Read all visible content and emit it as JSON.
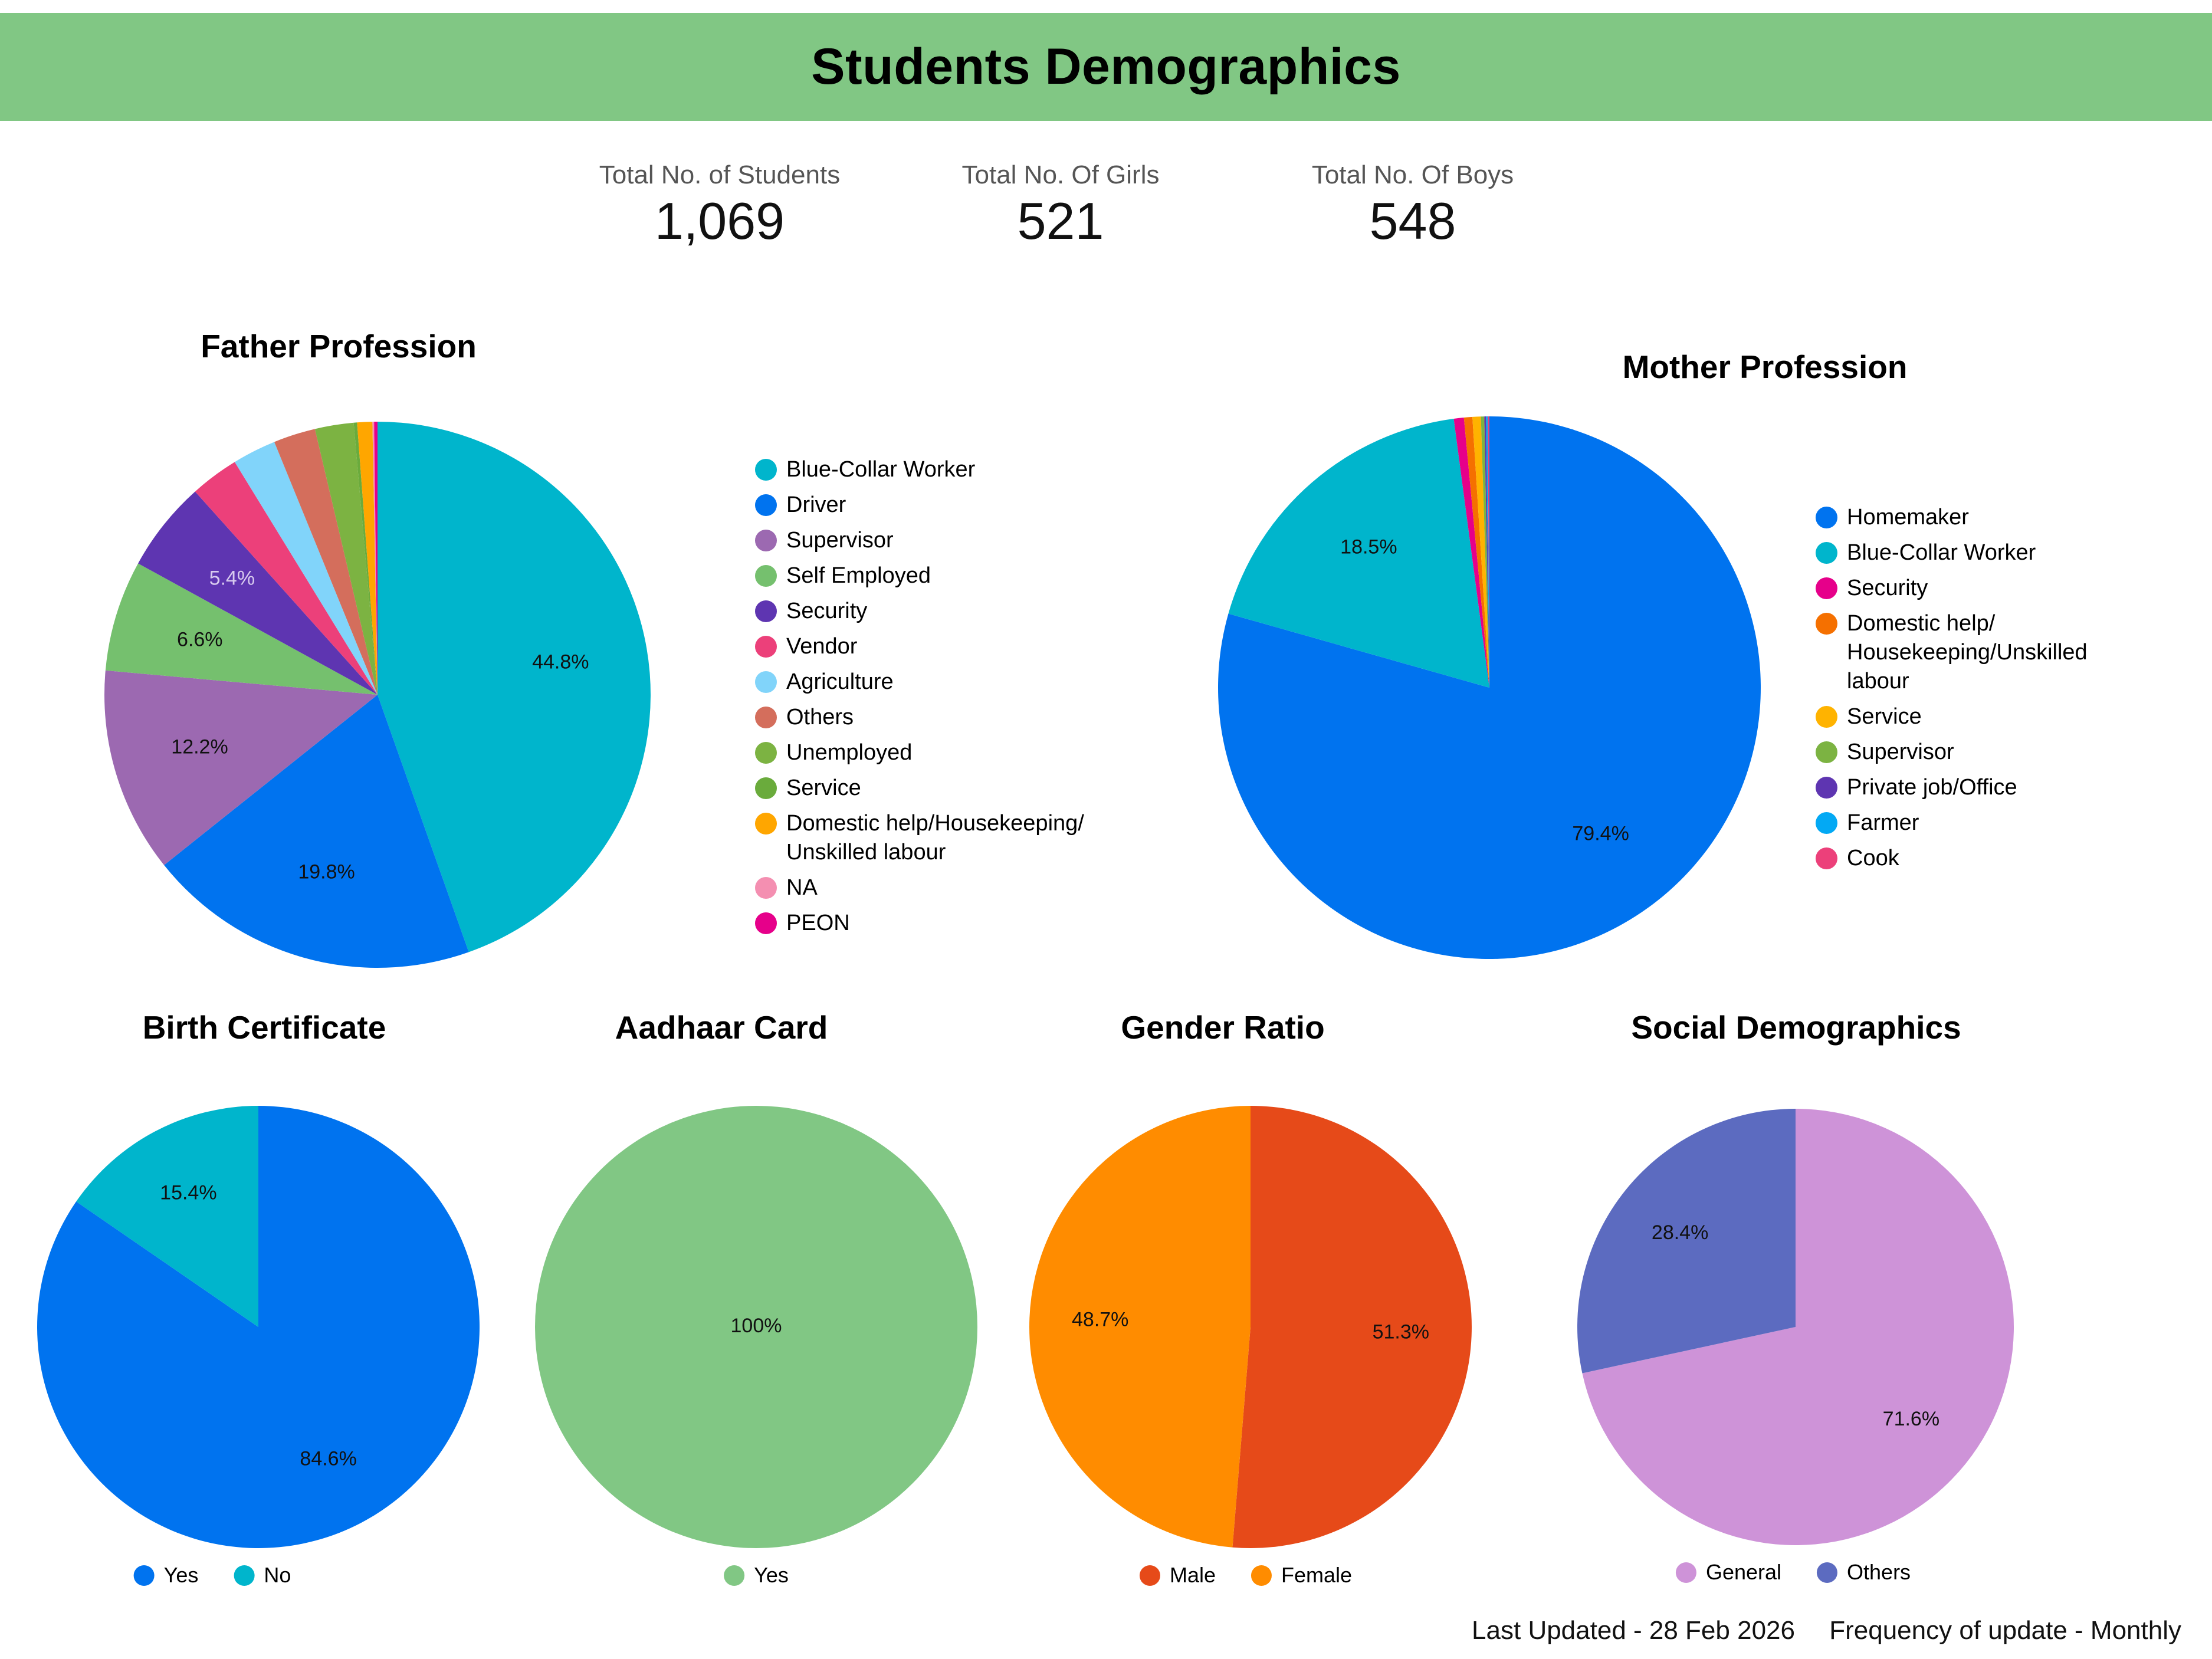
{
  "header": {
    "title": "Students Demographics"
  },
  "kpis": [
    {
      "label": "Total No. of Students",
      "value": "1,069"
    },
    {
      "label": "Total No. Of Girls",
      "value": "521"
    },
    {
      "label": "Total No. Of Boys",
      "value": "548"
    }
  ],
  "footer": {
    "last_updated": "Last Updated - 28 Feb 2026",
    "frequency": "Frequency of update - Monthly"
  },
  "chart_data": [
    {
      "id": "father",
      "type": "pie",
      "title": "Father Profession",
      "legend_position": "right",
      "slices": [
        {
          "name": "Blue-Collar Worker",
          "value": 44.8,
          "color": "#00b5cc",
          "label": "44.8%"
        },
        {
          "name": "Driver",
          "value": 19.8,
          "color": "#0073ef",
          "label": "19.8%"
        },
        {
          "name": "Supervisor",
          "value": 12.2,
          "color": "#9c69b1",
          "label": "12.2%"
        },
        {
          "name": "Self Employed",
          "value": 6.6,
          "color": "#75c06e",
          "label": "6.6%"
        },
        {
          "name": "Security",
          "value": 5.4,
          "color": "#5e35b1",
          "label": "5.4%",
          "label_color": "#d8cbef"
        },
        {
          "name": "Vendor",
          "value": 2.9,
          "color": "#ec407a"
        },
        {
          "name": "Agriculture",
          "value": 2.6,
          "color": "#81d4fa"
        },
        {
          "name": "Others",
          "value": 2.5,
          "color": "#d46e5c"
        },
        {
          "name": "Unemployed",
          "value": 2.3,
          "color": "#7cb342"
        },
        {
          "name": "Service",
          "value": 0.2,
          "color": "#6aab3c"
        },
        {
          "name": "Domestic help/Housekeeping/ Unskilled labour",
          "value": 0.9,
          "color": "#ffa600"
        },
        {
          "name": "NA",
          "value": 0.1,
          "color": "#f48fb1"
        },
        {
          "name": "PEON",
          "value": 0.2,
          "color": "#e6008a"
        }
      ]
    },
    {
      "id": "mother",
      "type": "pie",
      "title": "Mother Profession",
      "legend_position": "right",
      "slices": [
        {
          "name": "Homemaker",
          "value": 79.4,
          "color": "#0073ef",
          "label": "79.4%"
        },
        {
          "name": "Blue-Collar Worker",
          "value": 18.5,
          "color": "#00b5cc",
          "label": "18.5%"
        },
        {
          "name": "Security",
          "value": 0.6,
          "color": "#e6008a"
        },
        {
          "name": "Domestic help/ Housekeeping/Unskilled labour",
          "value": 0.5,
          "color": "#f57000"
        },
        {
          "name": "Service",
          "value": 0.5,
          "color": "#ffb300"
        },
        {
          "name": "Supervisor",
          "value": 0.2,
          "color": "#7cb342"
        },
        {
          "name": "Private job/Office",
          "value": 0.1,
          "color": "#5e35b1"
        },
        {
          "name": "Farmer",
          "value": 0.1,
          "color": "#03a9f4"
        },
        {
          "name": "Cook",
          "value": 0.1,
          "color": "#ec407a"
        }
      ]
    },
    {
      "id": "birth",
      "type": "pie",
      "title": "Birth Certificate",
      "legend_position": "bottom",
      "slices": [
        {
          "name": "Yes",
          "value": 84.6,
          "color": "#0073ef",
          "label": "84.6%"
        },
        {
          "name": "No",
          "value": 15.4,
          "color": "#00b5cc",
          "label": "15.4%"
        }
      ]
    },
    {
      "id": "aadhaar",
      "type": "pie",
      "title": "Aadhaar Card",
      "legend_position": "bottom",
      "slices": [
        {
          "name": "Yes",
          "value": 100,
          "color": "#81c784",
          "label": "100%"
        }
      ]
    },
    {
      "id": "gender",
      "type": "pie",
      "title": "Gender Ratio",
      "legend_position": "bottom",
      "slices": [
        {
          "name": "Male",
          "value": 51.3,
          "color": "#e64a19",
          "label": "51.3%"
        },
        {
          "name": "Female",
          "value": 48.7,
          "color": "#ff8c00",
          "label": "48.7%"
        }
      ]
    },
    {
      "id": "social",
      "type": "pie",
      "title": "Social Demographics",
      "legend_position": "bottom",
      "slices": [
        {
          "name": "General",
          "value": 71.6,
          "color": "#ce93d8",
          "label": "71.6%"
        },
        {
          "name": "Others",
          "value": 28.4,
          "color": "#5c6bc0",
          "label": "28.4%"
        }
      ]
    }
  ]
}
